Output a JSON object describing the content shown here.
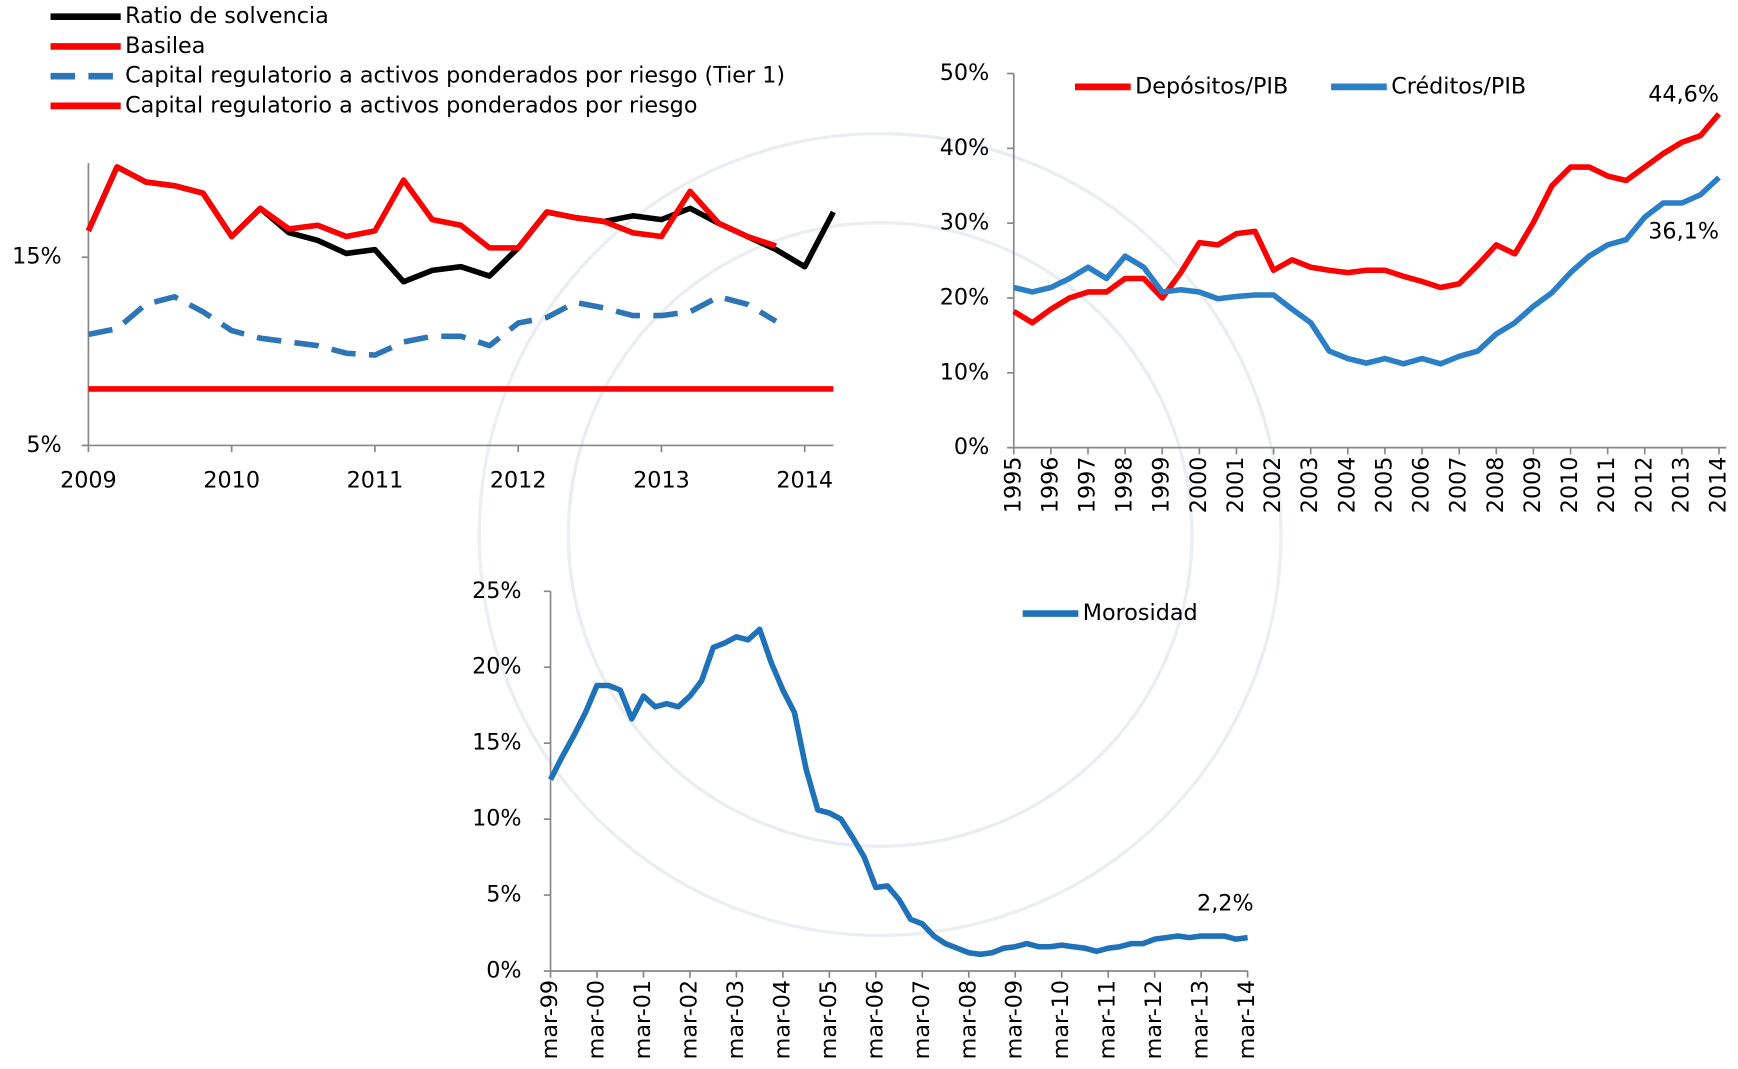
{
  "chart_data": [
    {
      "type": "line",
      "x": [
        2009,
        2009.2,
        2009.4,
        2009.6,
        2009.8,
        2010,
        2010.2,
        2010.4,
        2010.6,
        2010.8,
        2011,
        2011.2,
        2011.4,
        2011.6,
        2011.8,
        2012,
        2012.2,
        2012.4,
        2012.6,
        2012.8,
        2013,
        2013.2,
        2013.4,
        2013.6,
        2013.8,
        2014,
        2014.2
      ],
      "xlim": [
        2009,
        2014.2
      ],
      "xticks": [
        2009,
        2010,
        2011,
        2012,
        2013,
        2014
      ],
      "ylim": [
        5,
        20
      ],
      "yticks": [
        {
          "value": 5,
          "label": "5%"
        },
        {
          "value": 15,
          "label": "15%"
        }
      ],
      "series": [
        {
          "name": "Ratio de solvencia",
          "color": "#000000",
          "values": [
            16.4,
            19.8,
            19.0,
            18.8,
            18.4,
            16.1,
            17.6,
            16.3,
            15.9,
            15.2,
            15.4,
            13.7,
            14.3,
            14.5,
            14.0,
            15.5,
            17.4,
            17.1,
            16.9,
            17.2,
            17.0,
            17.6,
            16.8,
            16.1,
            15.4,
            14.5,
            17.4
          ]
        },
        {
          "name": "Basilea",
          "color": "#ff0000",
          "values": [
            8,
            8,
            8,
            8,
            8,
            8,
            8,
            8,
            8,
            8,
            8,
            8,
            8,
            8,
            8,
            8,
            8,
            8,
            8,
            8,
            8,
            8,
            8,
            8,
            8,
            8,
            8
          ]
        },
        {
          "name": "Capital regulatorio a activos ponderados por riesgo (Tier 1)",
          "color": "#2e75b6",
          "dash": true,
          "values": [
            10.9,
            11.2,
            12.5,
            12.9,
            12.1,
            11.1,
            10.7,
            10.5,
            10.3,
            9.9,
            9.8,
            10.5,
            10.8,
            10.8,
            10.3,
            11.5,
            11.8,
            12.6,
            12.3,
            11.9,
            11.9,
            12.1,
            12.9,
            12.5,
            11.6,
            null,
            null
          ]
        },
        {
          "name": "Capital regulatorio a activos ponderados por riesgo",
          "color": "#ff0000",
          "values": [
            16.4,
            19.8,
            19.0,
            18.8,
            18.4,
            16.1,
            17.6,
            16.5,
            16.7,
            16.1,
            16.4,
            19.1,
            17.0,
            16.7,
            15.5,
            15.5,
            17.4,
            17.1,
            16.9,
            16.3,
            16.1,
            18.5,
            16.8,
            16.1,
            15.6,
            null,
            null
          ]
        }
      ]
    },
    {
      "type": "line",
      "x": [
        1995,
        1995.5,
        1996,
        1996.5,
        1997,
        1997.5,
        1998,
        1998.5,
        1999,
        1999.5,
        2000,
        2000.5,
        2001,
        2001.5,
        2002,
        2002.5,
        2003,
        2003.5,
        2004,
        2004.5,
        2005,
        2005.5,
        2006,
        2006.5,
        2007,
        2007.5,
        2008,
        2008.5,
        2009,
        2009.5,
        2010,
        2010.5,
        2011,
        2011.5,
        2012,
        2012.5,
        2013,
        2013.5,
        2014
      ],
      "xlim": [
        1995,
        2014.2
      ],
      "xticks": [
        1995,
        1996,
        1997,
        1998,
        1999,
        2000,
        2001,
        2002,
        2003,
        2004,
        2005,
        2006,
        2007,
        2008,
        2009,
        2010,
        2011,
        2012,
        2013,
        2014
      ],
      "ylim": [
        0,
        50
      ],
      "yticks": [
        {
          "value": 0,
          "label": "0%"
        },
        {
          "value": 10,
          "label": "10%"
        },
        {
          "value": 20,
          "label": "20%"
        },
        {
          "value": 30,
          "label": "30%"
        },
        {
          "value": 40,
          "label": "40%"
        },
        {
          "value": 50,
          "label": "50%"
        }
      ],
      "series": [
        {
          "name": "Depósitos/PIB",
          "color": "#ff0000",
          "values": [
            18.2,
            16.7,
            18.5,
            20.0,
            20.8,
            20.8,
            22.6,
            22.6,
            20.0,
            23.4,
            27.4,
            27.1,
            28.6,
            28.9,
            23.7,
            25.1,
            24.1,
            23.7,
            23.4,
            23.7,
            23.7,
            22.9,
            22.2,
            21.4,
            21.9,
            24.4,
            27.1,
            25.9,
            30.1,
            35.0,
            37.5,
            37.5,
            36.3,
            35.7,
            37.5,
            39.3,
            40.8,
            41.7,
            44.6
          ]
        },
        {
          "name": "Créditos/PIB",
          "color": "#2a7fc6",
          "values": [
            21.4,
            20.8,
            21.4,
            22.6,
            24.1,
            22.6,
            25.6,
            24.1,
            20.8,
            21.1,
            20.8,
            19.9,
            20.2,
            20.4,
            20.4,
            18.5,
            16.7,
            12.9,
            11.9,
            11.3,
            11.9,
            11.2,
            11.9,
            11.2,
            12.2,
            12.9,
            15.2,
            16.7,
            18.9,
            20.7,
            23.4,
            25.6,
            27.1,
            27.8,
            30.8,
            32.7,
            32.7,
            33.8,
            36.1
          ]
        }
      ],
      "annotations": [
        "44,6%",
        "36,1%"
      ]
    },
    {
      "type": "line",
      "x": [
        1999.17,
        1999.42,
        1999.67,
        1999.92,
        2000.17,
        2000.42,
        2000.67,
        2000.92,
        2001.17,
        2001.42,
        2001.67,
        2001.92,
        2002.17,
        2002.42,
        2002.67,
        2002.92,
        2003.17,
        2003.42,
        2003.67,
        2003.92,
        2004.17,
        2004.42,
        2004.67,
        2004.92,
        2005.17,
        2005.42,
        2005.67,
        2005.92,
        2006.17,
        2006.42,
        2006.67,
        2006.92,
        2007.17,
        2007.42,
        2007.67,
        2007.92,
        2008.17,
        2008.42,
        2008.67,
        2008.92,
        2009.17,
        2009.42,
        2009.67,
        2009.92,
        2010.17,
        2010.42,
        2010.67,
        2010.92,
        2011.17,
        2011.42,
        2011.67,
        2011.92,
        2012.17,
        2012.42,
        2012.67,
        2012.92,
        2013.17,
        2013.42,
        2013.67,
        2013.92,
        2014.17
      ],
      "xlim": [
        1999.17,
        2014.17
      ],
      "xticks": [
        {
          "value": 1999.17,
          "label": "mar-99"
        },
        {
          "value": 2000.17,
          "label": "mar-00"
        },
        {
          "value": 2001.17,
          "label": "mar-01"
        },
        {
          "value": 2002.17,
          "label": "mar-02"
        },
        {
          "value": 2003.17,
          "label": "mar-03"
        },
        {
          "value": 2004.17,
          "label": "mar-04"
        },
        {
          "value": 2005.17,
          "label": "mar-05"
        },
        {
          "value": 2006.17,
          "label": "mar-06"
        },
        {
          "value": 2007.17,
          "label": "mar-07"
        },
        {
          "value": 2008.17,
          "label": "mar-08"
        },
        {
          "value": 2009.17,
          "label": "mar-09"
        },
        {
          "value": 2010.17,
          "label": "mar-10"
        },
        {
          "value": 2011.17,
          "label": "mar-11"
        },
        {
          "value": 2012.17,
          "label": "mar-12"
        },
        {
          "value": 2013.17,
          "label": "mar-13"
        },
        {
          "value": 2014.17,
          "label": "mar-14"
        }
      ],
      "ylim": [
        0,
        25
      ],
      "yticks": [
        {
          "value": 0,
          "label": "0%"
        },
        {
          "value": 5,
          "label": "5%"
        },
        {
          "value": 10,
          "label": "10%"
        },
        {
          "value": 15,
          "label": "15%"
        },
        {
          "value": 20,
          "label": "20%"
        },
        {
          "value": 25,
          "label": "25%"
        }
      ],
      "series": [
        {
          "name": "Morosidad",
          "color": "#1f72b8",
          "values": [
            12.6,
            14.1,
            15.5,
            17.0,
            18.8,
            18.8,
            18.5,
            16.6,
            18.1,
            17.4,
            17.6,
            17.4,
            18.1,
            19.1,
            21.3,
            21.6,
            22.0,
            21.8,
            22.5,
            20.3,
            18.5,
            17.0,
            13.3,
            10.6,
            10.4,
            10.0,
            8.8,
            7.5,
            5.5,
            5.6,
            4.7,
            3.4,
            3.1,
            2.3,
            1.8,
            1.5,
            1.2,
            1.1,
            1.2,
            1.5,
            1.6,
            1.8,
            1.6,
            1.6,
            1.7,
            1.6,
            1.5,
            1.3,
            1.5,
            1.6,
            1.8,
            1.8,
            2.1,
            2.2,
            2.3,
            2.2,
            2.3,
            2.3,
            2.3,
            2.1,
            2.2
          ]
        }
      ],
      "annotations": [
        "2,2%"
      ]
    }
  ]
}
